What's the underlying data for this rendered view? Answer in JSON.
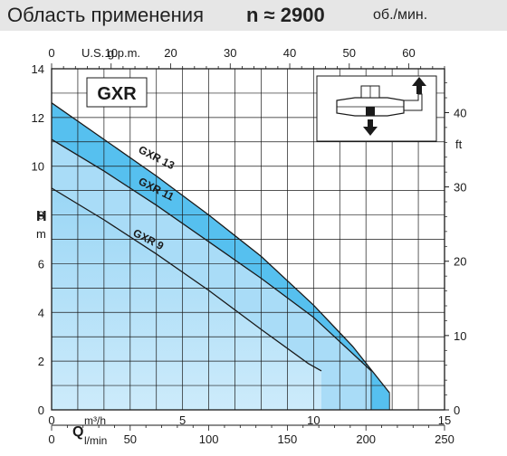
{
  "header": {
    "title": "Область применения",
    "speed": "n ≈ 2900",
    "speed_unit": "об./мин."
  },
  "chart_data": {
    "type": "area",
    "panel_label": "GXR",
    "axes": {
      "q_m3h": {
        "label": "Q",
        "unit": "m³/h",
        "range": [
          0,
          15
        ],
        "ticks": [
          0,
          5,
          10,
          15
        ]
      },
      "q_lmin": {
        "unit": "l/min",
        "range": [
          0,
          250
        ],
        "ticks": [
          0,
          50,
          100,
          150,
          200,
          250
        ]
      },
      "q_usgpm": {
        "label": "U.S. g.p.m.",
        "range": [
          0,
          66
        ],
        "ticks": [
          0,
          10,
          20,
          30,
          40,
          50,
          60
        ]
      },
      "h_m": {
        "label": "H",
        "unit": "m",
        "range": [
          0,
          14
        ],
        "ticks": [
          0,
          2,
          4,
          6,
          8,
          10,
          12,
          14
        ]
      },
      "h_ft": {
        "unit": "ft",
        "range": [
          0,
          45.9
        ],
        "ticks": [
          0,
          10,
          20,
          30,
          40
        ]
      }
    },
    "grid": true,
    "series": [
      {
        "name": "GXR 13",
        "x": [
          0,
          2,
          4,
          6,
          8,
          10,
          11.5,
          12.9
        ],
        "y": [
          12.6,
          11.1,
          9.6,
          8.0,
          6.3,
          4.3,
          2.6,
          0.7
        ]
      },
      {
        "name": "GXR 11",
        "x": [
          0,
          2,
          4,
          6,
          8,
          10,
          11.2,
          12.2
        ],
        "y": [
          11.1,
          9.8,
          8.4,
          6.9,
          5.4,
          3.8,
          2.6,
          1.6
        ]
      },
      {
        "name": "GXR 9",
        "x": [
          0,
          2,
          4,
          6,
          8,
          9.8,
          10.3
        ],
        "y": [
          9.1,
          7.8,
          6.4,
          4.9,
          3.3,
          1.9,
          1.6
        ]
      }
    ],
    "colors": {
      "band_dark": "#56c0ef",
      "band_light": "#a9dcf7",
      "band_light_top": "#9ad6f5",
      "band_light_bottom": "#cdebfb",
      "curve": "#1a1a1a",
      "grid": "#1a1a1a"
    }
  }
}
